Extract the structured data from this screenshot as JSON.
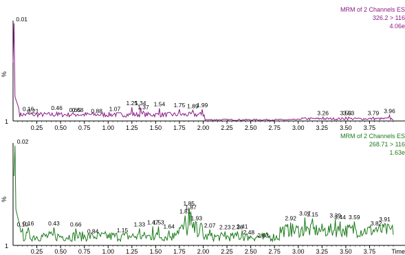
{
  "chart_data": [
    {
      "type": "line",
      "header": [
        "MRM of 2 Channels ES",
        "326.2 > 116",
        "4.06e"
      ],
      "ylabel": "%",
      "ytick": "1",
      "xlabel": "",
      "xlim": [
        0.0,
        4.0
      ],
      "grid": false,
      "color": "#8a1a86",
      "xticks": [
        0.25,
        0.5,
        0.75,
        1.0,
        1.25,
        1.5,
        1.75,
        2.0,
        2.25,
        2.5,
        2.75,
        3.0,
        3.25,
        3.5,
        3.75
      ],
      "peaks": [
        {
          "x": 0.01,
          "label": "0.01",
          "y": 100
        },
        {
          "x": 0.16,
          "label": "0.16",
          "y": 8
        },
        {
          "x": 0.21,
          "label": "0.21",
          "y": 6
        },
        {
          "x": 0.46,
          "label": "0.46",
          "y": 9
        },
        {
          "x": 0.65,
          "label": "0.65",
          "y": 7
        },
        {
          "x": 0.68,
          "label": "0.68",
          "y": 7
        },
        {
          "x": 0.88,
          "label": "0.88",
          "y": 6
        },
        {
          "x": 1.07,
          "label": "1.07",
          "y": 8
        },
        {
          "x": 1.25,
          "label": "1.25",
          "y": 14
        },
        {
          "x": 1.34,
          "label": "1.34",
          "y": 14
        },
        {
          "x": 1.37,
          "label": "1.37",
          "y": 10
        },
        {
          "x": 1.54,
          "label": "1.54",
          "y": 13
        },
        {
          "x": 1.75,
          "label": "1.75",
          "y": 12
        },
        {
          "x": 1.89,
          "label": "1.89",
          "y": 11
        },
        {
          "x": 1.99,
          "label": "1.99",
          "y": 12
        },
        {
          "x": 3.26,
          "label": "3.26",
          "y": 4
        },
        {
          "x": 3.5,
          "label": "3.50",
          "y": 4
        },
        {
          "x": 3.53,
          "label": "3.53",
          "y": 4
        },
        {
          "x": 3.79,
          "label": "3.79",
          "y": 4
        },
        {
          "x": 3.96,
          "label": "3.96",
          "y": 6
        }
      ]
    },
    {
      "type": "line",
      "header": [
        "MRM of 2 Channels ES",
        "268.71 > 116",
        "1.63e"
      ],
      "ylabel": "%",
      "ytick": "1",
      "xlabel": "Time",
      "xlim": [
        0.0,
        4.0
      ],
      "grid": false,
      "color": "#1a7a1a",
      "xticks": [
        0.25,
        0.5,
        0.75,
        1.0,
        1.25,
        1.5,
        1.75,
        2.0,
        2.25,
        2.5,
        2.75,
        3.0,
        3.25,
        3.5,
        3.75
      ],
      "peaks": [
        {
          "x": 0.02,
          "label": "0.02",
          "y": 100
        },
        {
          "x": 0.1,
          "label": "0.10",
          "y": 17
        },
        {
          "x": 0.16,
          "label": "0.16",
          "y": 18
        },
        {
          "x": 0.43,
          "label": "0.43",
          "y": 18
        },
        {
          "x": 0.66,
          "label": "0.66",
          "y": 17
        },
        {
          "x": 0.84,
          "label": "0.84",
          "y": 10
        },
        {
          "x": 1.15,
          "label": "1.15",
          "y": 11
        },
        {
          "x": 1.33,
          "label": "1.33",
          "y": 17
        },
        {
          "x": 1.47,
          "label": "1.47",
          "y": 19
        },
        {
          "x": 1.53,
          "label": "1.53",
          "y": 19
        },
        {
          "x": 1.64,
          "label": "1.64",
          "y": 15
        },
        {
          "x": 1.81,
          "label": "1.81",
          "y": 30
        },
        {
          "x": 1.85,
          "label": "1.85",
          "y": 38
        },
        {
          "x": 1.87,
          "label": "1.87",
          "y": 34
        },
        {
          "x": 1.93,
          "label": "1.93",
          "y": 23
        },
        {
          "x": 2.07,
          "label": "2.07",
          "y": 16
        },
        {
          "x": 2.23,
          "label": "2.23",
          "y": 14
        },
        {
          "x": 2.36,
          "label": "2.36",
          "y": 14
        },
        {
          "x": 2.41,
          "label": "2.41",
          "y": 15
        },
        {
          "x": 2.48,
          "label": "2.48",
          "y": 9
        },
        {
          "x": 2.63,
          "label": "2.63",
          "y": 6
        },
        {
          "x": 2.92,
          "label": "2.92",
          "y": 23
        },
        {
          "x": 3.07,
          "label": "3.07",
          "y": 28
        },
        {
          "x": 3.15,
          "label": "3.15",
          "y": 27
        },
        {
          "x": 3.39,
          "label": "3.39",
          "y": 26
        },
        {
          "x": 3.44,
          "label": "3.44",
          "y": 24
        },
        {
          "x": 3.59,
          "label": "3.59",
          "y": 24
        },
        {
          "x": 3.82,
          "label": "3.82",
          "y": 18
        },
        {
          "x": 3.91,
          "label": "3.91",
          "y": 22
        }
      ]
    }
  ]
}
